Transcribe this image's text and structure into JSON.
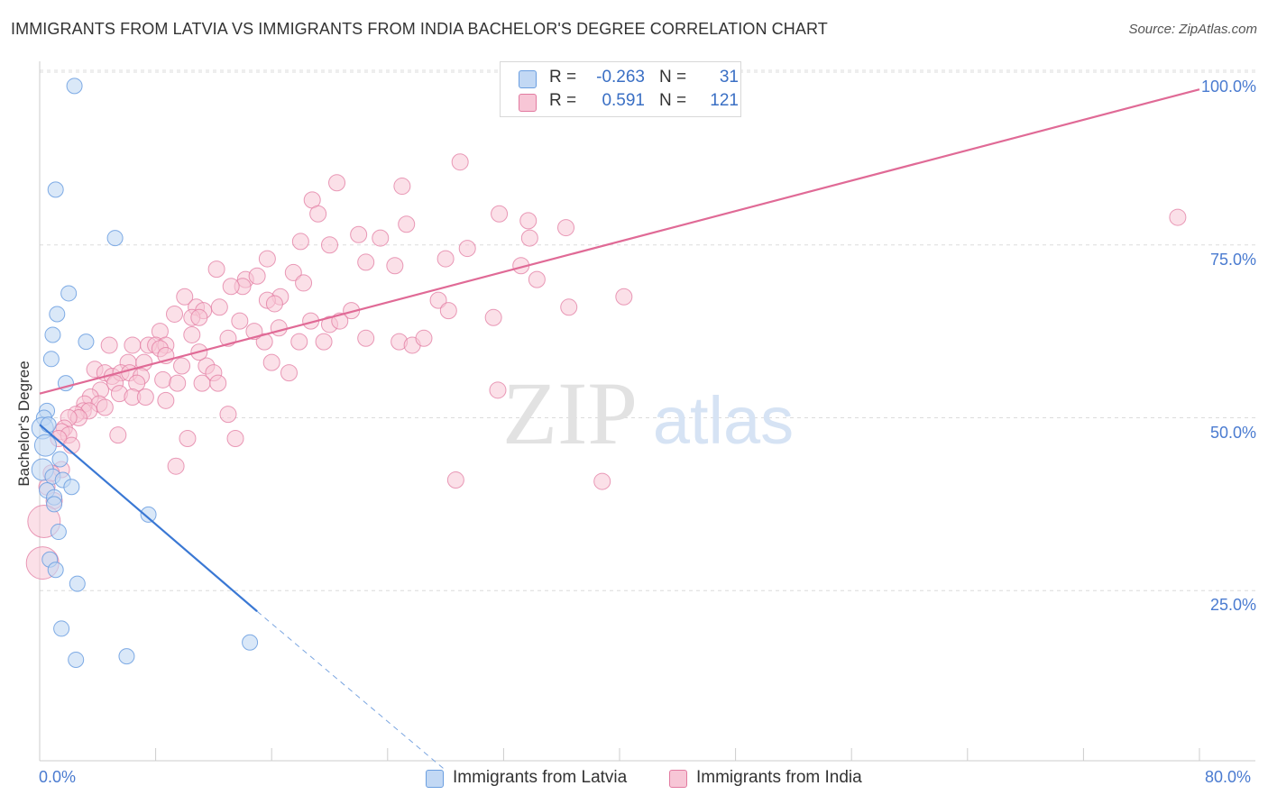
{
  "title": "IMMIGRANTS FROM LATVIA VS IMMIGRANTS FROM INDIA BACHELOR'S DEGREE CORRELATION CHART",
  "source": "Source: ZipAtlas.com",
  "watermark": {
    "zip": "ZIP",
    "atlas": "atlas"
  },
  "legend": {
    "rows": [
      {
        "r_label": "R =",
        "r_value": "-0.263",
        "n_label": "N =",
        "n_value": "31",
        "color": "#a9c8f0"
      },
      {
        "r_label": "R =",
        "r_value": "0.591",
        "n_label": "N =",
        "n_value": "121",
        "color": "#f5b8cc"
      }
    ]
  },
  "chart_data": {
    "type": "scatter",
    "xlabel": "",
    "ylabel": "Bachelor's Degree",
    "xlim": [
      0,
      80
    ],
    "ylim": [
      0,
      105
    ],
    "x_tick_labels": [
      "0.0%",
      "80.0%"
    ],
    "y_tick_labels": [
      "25.0%",
      "50.0%",
      "75.0%",
      "100.0%"
    ],
    "y_ticks": [
      25,
      50,
      75,
      100
    ],
    "grid": "horizontal dashed",
    "legend_position": "top-center",
    "series": [
      {
        "name": "Immigrants from Latvia",
        "color": "#6a9ee0",
        "fill": "#c2d8f4",
        "points": [
          [
            2.4,
            98.0
          ],
          [
            1.1,
            83.0
          ],
          [
            5.2,
            76.0
          ],
          [
            2.0,
            68.0
          ],
          [
            1.2,
            65.0
          ],
          [
            0.9,
            62.0
          ],
          [
            3.2,
            61.0
          ],
          [
            0.8,
            58.5
          ],
          [
            1.8,
            55.0
          ],
          [
            0.5,
            51.0
          ],
          [
            0.3,
            50.0
          ],
          [
            0.2,
            48.5
          ],
          [
            1.4,
            44.0
          ],
          [
            0.2,
            42.5
          ],
          [
            0.9,
            41.5
          ],
          [
            1.6,
            41.0
          ],
          [
            2.2,
            40.0
          ],
          [
            0.5,
            39.5
          ],
          [
            1.0,
            38.5
          ],
          [
            1.0,
            37.5
          ],
          [
            7.5,
            36.0
          ],
          [
            1.3,
            33.5
          ],
          [
            0.7,
            29.5
          ],
          [
            1.1,
            28.0
          ],
          [
            2.6,
            26.0
          ],
          [
            1.5,
            19.5
          ],
          [
            2.5,
            15.0
          ],
          [
            6.0,
            15.5
          ],
          [
            14.5,
            17.5
          ],
          [
            0.4,
            46.0
          ],
          [
            0.6,
            49.0
          ]
        ],
        "trend": {
          "x0": 0,
          "y0": 49.0,
          "x1": 15.0,
          "y1": 22.0,
          "dash_x1": 28.0,
          "dash_y1": -1.0
        }
      },
      {
        "name": "Immigrants from India",
        "color": "#e27aa0",
        "fill": "#f7c6d6",
        "points": [
          [
            29.0,
            87.0
          ],
          [
            20.5,
            84.0
          ],
          [
            25.0,
            83.5
          ],
          [
            18.8,
            81.5
          ],
          [
            19.2,
            79.5
          ],
          [
            31.7,
            79.5
          ],
          [
            33.7,
            78.5
          ],
          [
            25.3,
            78.0
          ],
          [
            78.5,
            79.0
          ],
          [
            36.3,
            77.5
          ],
          [
            22.0,
            76.5
          ],
          [
            23.5,
            76.0
          ],
          [
            33.8,
            76.0
          ],
          [
            18.0,
            75.5
          ],
          [
            20.0,
            75.0
          ],
          [
            29.5,
            74.5
          ],
          [
            28.0,
            73.0
          ],
          [
            15.7,
            73.0
          ],
          [
            22.5,
            72.5
          ],
          [
            24.5,
            72.0
          ],
          [
            12.2,
            71.5
          ],
          [
            17.5,
            71.0
          ],
          [
            14.2,
            70.0
          ],
          [
            15.0,
            70.5
          ],
          [
            33.2,
            72.0
          ],
          [
            34.3,
            70.0
          ],
          [
            14.0,
            69.0
          ],
          [
            18.2,
            69.5
          ],
          [
            13.2,
            69.0
          ],
          [
            16.6,
            67.5
          ],
          [
            15.7,
            67.0
          ],
          [
            10.0,
            67.5
          ],
          [
            16.2,
            66.5
          ],
          [
            10.8,
            66.0
          ],
          [
            11.3,
            65.5
          ],
          [
            12.4,
            66.0
          ],
          [
            21.5,
            65.5
          ],
          [
            27.5,
            67.0
          ],
          [
            28.2,
            65.5
          ],
          [
            40.3,
            67.5
          ],
          [
            36.5,
            66.0
          ],
          [
            9.3,
            65.0
          ],
          [
            10.5,
            64.5
          ],
          [
            11.0,
            64.5
          ],
          [
            13.8,
            64.0
          ],
          [
            20.0,
            63.5
          ],
          [
            18.7,
            64.0
          ],
          [
            20.7,
            64.0
          ],
          [
            16.5,
            63.0
          ],
          [
            31.3,
            64.5
          ],
          [
            8.3,
            62.5
          ],
          [
            10.5,
            62.0
          ],
          [
            13.0,
            61.5
          ],
          [
            22.5,
            61.5
          ],
          [
            24.8,
            61.0
          ],
          [
            19.6,
            61.0
          ],
          [
            15.5,
            61.0
          ],
          [
            17.9,
            61.0
          ],
          [
            25.7,
            60.5
          ],
          [
            6.4,
            60.5
          ],
          [
            7.5,
            60.5
          ],
          [
            8.0,
            60.5
          ],
          [
            8.7,
            60.5
          ],
          [
            8.3,
            60.0
          ],
          [
            4.8,
            60.5
          ],
          [
            8.7,
            59.0
          ],
          [
            6.1,
            58.0
          ],
          [
            7.2,
            58.0
          ],
          [
            9.8,
            57.5
          ],
          [
            3.8,
            57.0
          ],
          [
            11.5,
            57.5
          ],
          [
            16.0,
            58.0
          ],
          [
            17.2,
            56.5
          ],
          [
            12.0,
            56.5
          ],
          [
            4.5,
            56.5
          ],
          [
            5.0,
            56.0
          ],
          [
            5.6,
            56.5
          ],
          [
            6.2,
            56.5
          ],
          [
            7.0,
            56.0
          ],
          [
            8.5,
            55.5
          ],
          [
            9.5,
            55.0
          ],
          [
            11.2,
            55.0
          ],
          [
            6.7,
            55.0
          ],
          [
            5.2,
            55.0
          ],
          [
            4.2,
            54.0
          ],
          [
            5.5,
            53.5
          ],
          [
            6.4,
            53.0
          ],
          [
            3.5,
            53.0
          ],
          [
            7.3,
            53.0
          ],
          [
            8.7,
            52.5
          ],
          [
            31.6,
            54.0
          ],
          [
            3.1,
            52.0
          ],
          [
            4.1,
            52.0
          ],
          [
            4.5,
            51.5
          ],
          [
            3.0,
            51.0
          ],
          [
            3.4,
            51.0
          ],
          [
            2.5,
            50.5
          ],
          [
            2.7,
            50.0
          ],
          [
            2.0,
            50.0
          ],
          [
            13.0,
            50.5
          ],
          [
            1.7,
            48.5
          ],
          [
            1.5,
            48.0
          ],
          [
            2.0,
            47.5
          ],
          [
            5.4,
            47.5
          ],
          [
            10.2,
            47.0
          ],
          [
            13.5,
            47.0
          ],
          [
            9.4,
            43.0
          ],
          [
            1.5,
            42.5
          ],
          [
            0.5,
            40.0
          ],
          [
            28.7,
            41.0
          ],
          [
            38.8,
            40.8
          ],
          [
            1.0,
            38.0
          ],
          [
            0.3,
            35.0
          ],
          [
            0.2,
            29.0
          ],
          [
            0.8,
            42.0
          ],
          [
            1.3,
            47.0
          ],
          [
            2.2,
            46.0
          ],
          [
            12.3,
            55.0
          ],
          [
            14.8,
            62.5
          ],
          [
            26.5,
            61.5
          ],
          [
            11.0,
            59.5
          ]
        ],
        "trend": {
          "x0": 0,
          "y0": 53.5,
          "x1": 80,
          "y1": 97.5
        }
      }
    ]
  },
  "bottom_legend": [
    "Immigrants from Latvia",
    "Immigrants from India"
  ]
}
